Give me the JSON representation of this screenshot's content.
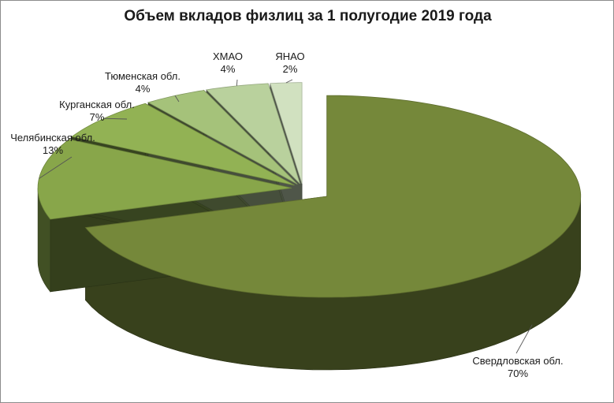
{
  "chart_data": {
    "type": "pie",
    "style": "3d-exploded",
    "title": "Объем вкладов физлиц за 1 полугодие 2019 года",
    "slices": [
      {
        "name": "Свердловская обл.",
        "value": 70,
        "label": "70%",
        "color": "#75883a"
      },
      {
        "name": "Челябинская обл.",
        "value": 13,
        "label": "13%",
        "color": "#88a64a"
      },
      {
        "name": "Курганская обл.",
        "value": 7,
        "label": "7%",
        "color": "#92b254"
      },
      {
        "name": "Тюменская обл.",
        "value": 4,
        "label": "4%",
        "color": "#a5c27a"
      },
      {
        "name": "ХМАО",
        "value": 4,
        "label": "4%",
        "color": "#b9d19d"
      },
      {
        "name": "ЯНАО",
        "value": 2,
        "label": "2%",
        "color": "#d1e1c0"
      }
    ],
    "legend": "none"
  }
}
